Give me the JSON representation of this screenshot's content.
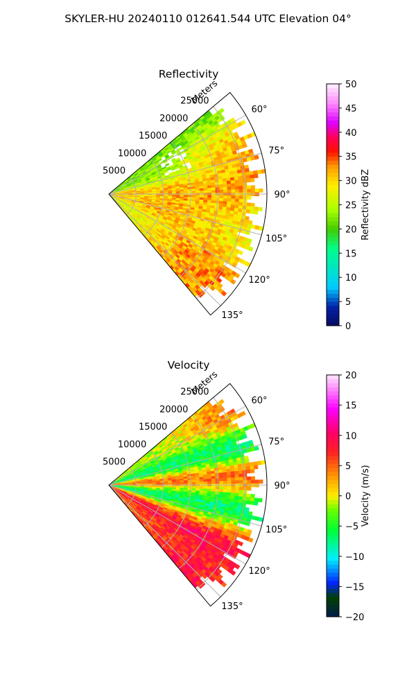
{
  "figure": {
    "title": "SKYLER-HU  20240110  012641.544 UTC Elevation 04°"
  },
  "chart_data": [
    {
      "type": "heatmap",
      "projection": "polar-sector",
      "title": "Reflectivity",
      "rlabel": "Meters",
      "r_ticks": [
        5000,
        10000,
        15000,
        20000,
        25000
      ],
      "r_tick_labels": [
        "5000",
        "10000",
        "15000",
        "20000",
        "25000"
      ],
      "rlim": [
        0,
        29000
      ],
      "theta_ticks": [
        60,
        75,
        90,
        105,
        120,
        135
      ],
      "theta_tick_labels": [
        "60°",
        "75°",
        "90°",
        "105°",
        "120°",
        "135°"
      ],
      "theta_range": [
        50,
        140
      ],
      "grid": true,
      "colorbar": {
        "label": "Reflectivity dBZ",
        "vmin": 0,
        "vmax": 50,
        "ticks": [
          0,
          5,
          10,
          15,
          20,
          25,
          30,
          35,
          40,
          45,
          50
        ],
        "tick_labels": [
          "0",
          "5",
          "10",
          "15",
          "20",
          "25",
          "30",
          "35",
          "40",
          "45",
          "50"
        ]
      },
      "bands": [
        {
          "az": [
            52,
            58
          ],
          "r": [
            9000,
            27000
          ],
          "value": 21
        },
        {
          "az": [
            58,
            64
          ],
          "r": [
            8000,
            29000
          ],
          "value": 24
        },
        {
          "az": [
            62,
            68
          ],
          "r": [
            22000,
            29000
          ],
          "value": 36
        },
        {
          "az": [
            64,
            74
          ],
          "r": [
            6000,
            18000
          ],
          "value": 20
        },
        {
          "az": [
            66,
            72
          ],
          "r": [
            18000,
            24000
          ],
          "value": 34
        },
        {
          "az": [
            74,
            82
          ],
          "r": [
            4000,
            29000
          ],
          "value": 27
        },
        {
          "az": [
            76,
            84
          ],
          "r": [
            20000,
            28000
          ],
          "value": 37
        },
        {
          "az": [
            82,
            90
          ],
          "r": [
            0,
            12000
          ],
          "value": 34
        },
        {
          "az": [
            86,
            96
          ],
          "r": [
            0,
            29000
          ],
          "value": 29
        },
        {
          "az": [
            90,
            98
          ],
          "r": [
            14000,
            22000
          ],
          "value": 36
        },
        {
          "az": [
            96,
            104
          ],
          "r": [
            0,
            28000
          ],
          "value": 27
        },
        {
          "az": [
            100,
            108
          ],
          "r": [
            6000,
            14000
          ],
          "value": 36
        },
        {
          "az": [
            104,
            112
          ],
          "r": [
            0,
            26000
          ],
          "value": 29
        },
        {
          "az": [
            108,
            114
          ],
          "r": [
            10000,
            16000
          ],
          "value": 35
        },
        {
          "az": [
            112,
            122
          ],
          "r": [
            4000,
            25000
          ],
          "value": 26
        },
        {
          "az": [
            120,
            128
          ],
          "r": [
            17000,
            24000
          ],
          "value": 40
        },
        {
          "az": [
            124,
            134
          ],
          "r": [
            3000,
            26000
          ],
          "value": 27
        },
        {
          "az": [
            130,
            137
          ],
          "r": [
            18000,
            25000
          ],
          "value": 35
        }
      ]
    },
    {
      "type": "heatmap",
      "projection": "polar-sector",
      "title": "Velocity",
      "rlabel": "Meters",
      "r_ticks": [
        5000,
        10000,
        15000,
        20000,
        25000
      ],
      "r_tick_labels": [
        "5000",
        "10000",
        "15000",
        "20000",
        "25000"
      ],
      "rlim": [
        0,
        29000
      ],
      "theta_ticks": [
        60,
        75,
        90,
        105,
        120,
        135
      ],
      "theta_tick_labels": [
        "60°",
        "75°",
        "90°",
        "105°",
        "120°",
        "135°"
      ],
      "theta_range": [
        50,
        140
      ],
      "grid": true,
      "colorbar": {
        "label": "Velocity (m/s)",
        "vmin": -20,
        "vmax": 20,
        "ticks": [
          -20,
          -15,
          -10,
          -5,
          0,
          5,
          10,
          15,
          20
        ],
        "tick_labels": [
          "−20",
          "−15",
          "−10",
          "−5",
          "0",
          "5",
          "10",
          "15",
          "20"
        ]
      },
      "bands": [
        {
          "az": [
            52,
            60
          ],
          "r": [
            8000,
            29000
          ],
          "value": -1
        },
        {
          "az": [
            56,
            62
          ],
          "r": [
            22000,
            29000
          ],
          "value": 11
        },
        {
          "az": [
            62,
            72
          ],
          "r": [
            6000,
            28000
          ],
          "value": -4
        },
        {
          "az": [
            72,
            80
          ],
          "r": [
            4000,
            28000
          ],
          "value": -11
        },
        {
          "az": [
            80,
            86
          ],
          "r": [
            0,
            28000
          ],
          "value": 4
        },
        {
          "az": [
            84,
            90
          ],
          "r": [
            0,
            26000
          ],
          "value": 14
        },
        {
          "az": [
            90,
            96
          ],
          "r": [
            0,
            27000
          ],
          "value": -2
        },
        {
          "az": [
            94,
            104
          ],
          "r": [
            0,
            24000
          ],
          "value": -11
        },
        {
          "az": [
            104,
            112
          ],
          "r": [
            0,
            22000
          ],
          "value": -6
        },
        {
          "az": [
            110,
            118
          ],
          "r": [
            4000,
            24000
          ],
          "value": 14
        },
        {
          "az": [
            118,
            126
          ],
          "r": [
            5000,
            25000
          ],
          "value": 9
        },
        {
          "az": [
            126,
            134
          ],
          "r": [
            4000,
            26000
          ],
          "value": 4
        },
        {
          "az": [
            130,
            137
          ],
          "r": [
            18000,
            25000
          ],
          "value": 11
        }
      ]
    }
  ]
}
